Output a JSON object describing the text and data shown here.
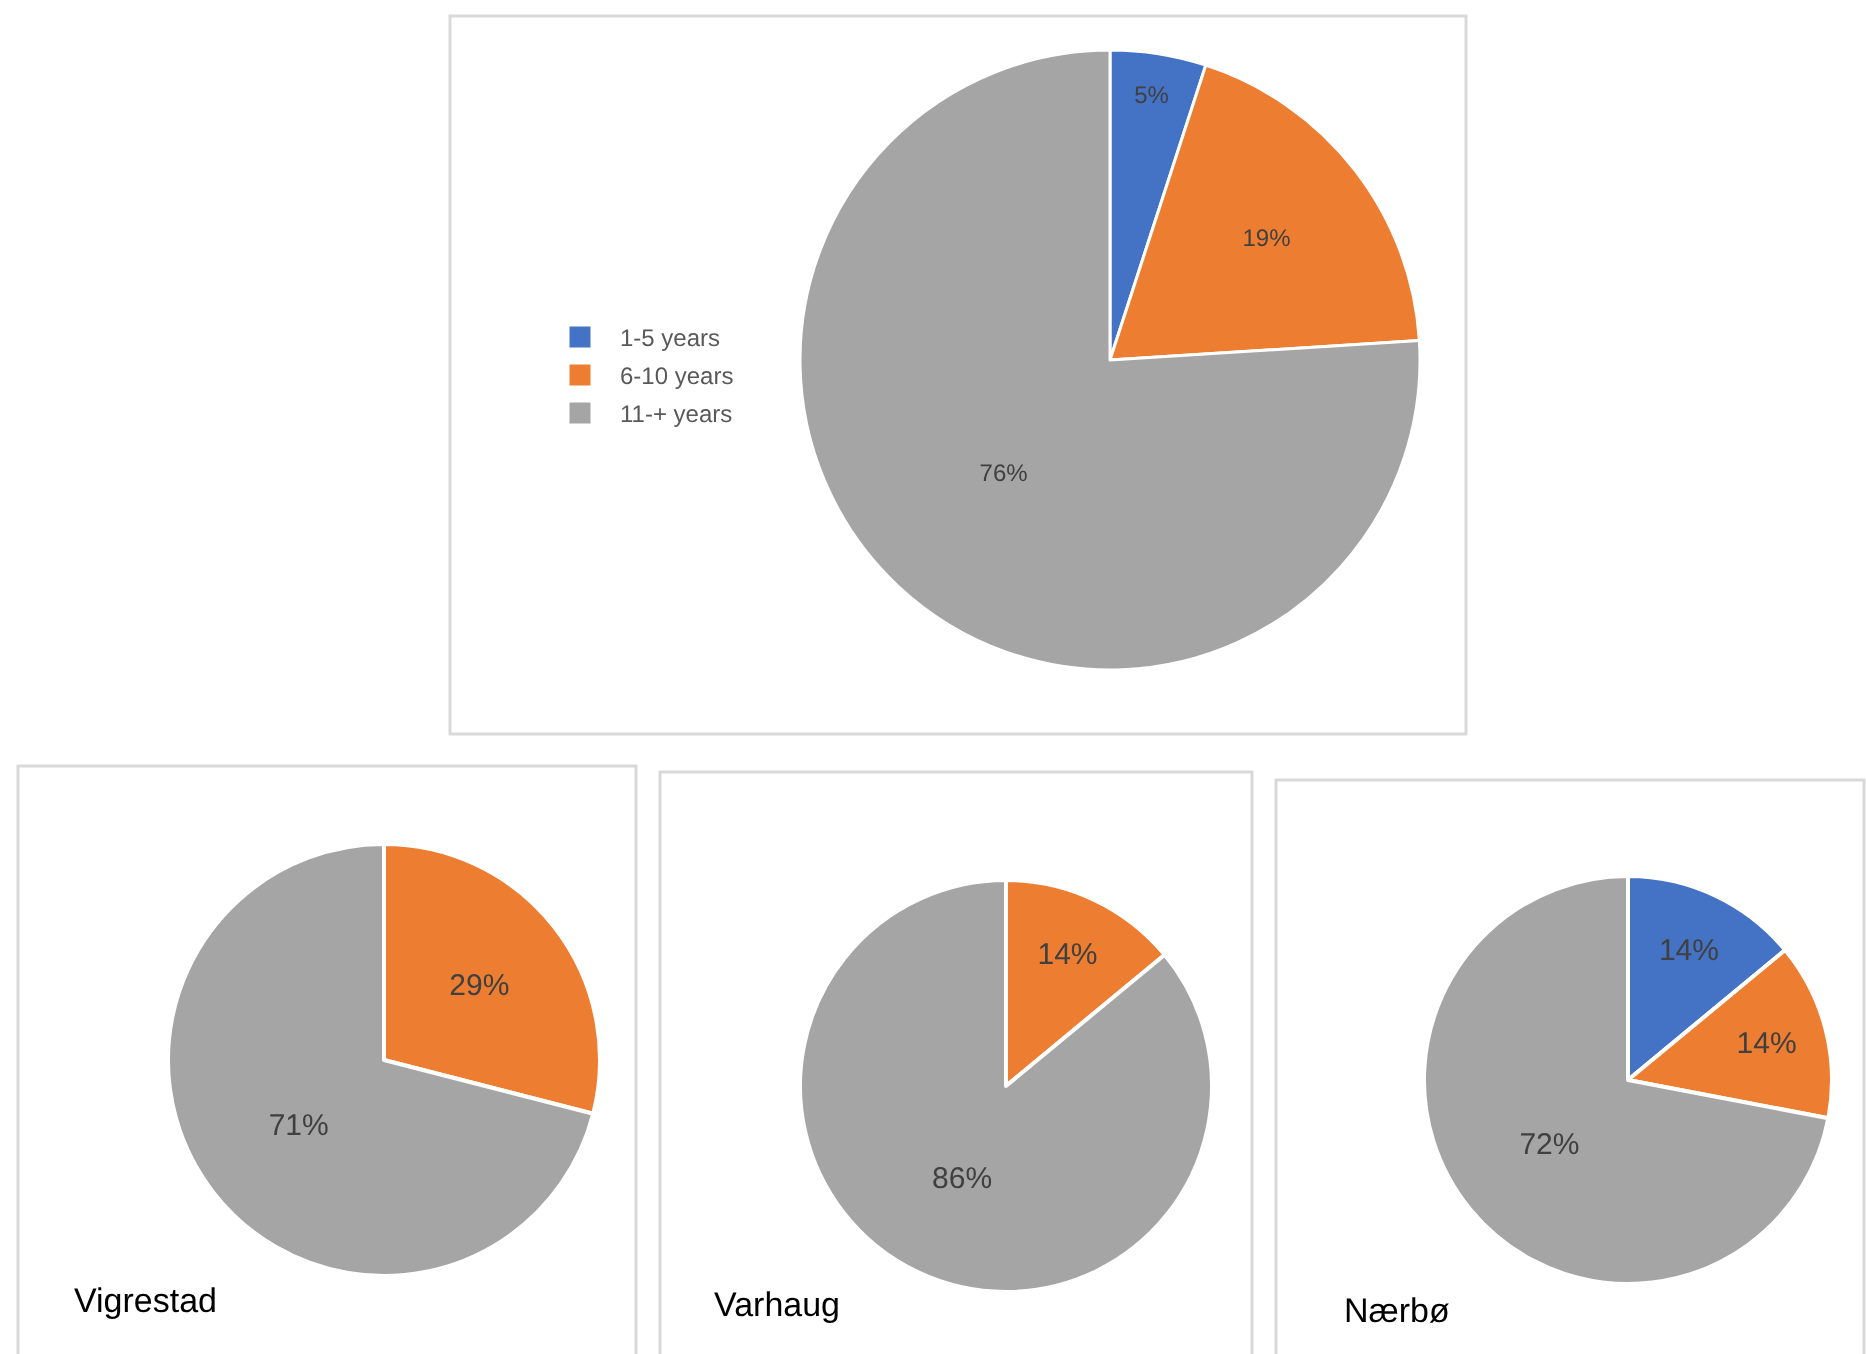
{
  "chart_data": [
    {
      "type": "pie",
      "categories": [
        "1-5 years",
        "6-10 years",
        "11-+ years"
      ],
      "values": [
        5,
        19,
        76
      ],
      "colors": [
        "#4472c4",
        "#ed7d31",
        "#a5a5a5"
      ],
      "value_labels": [
        "5%",
        "19%",
        "76%"
      ],
      "legend": "left"
    },
    {
      "type": "pie",
      "title": "Vigrestad",
      "categories": [
        null,
        null
      ],
      "values": [
        29,
        71
      ],
      "colors": [
        "#ed7d31",
        "#a5a5a5"
      ],
      "value_labels": [
        "29%",
        "71%"
      ]
    },
    {
      "type": "pie",
      "title": "Varhaug",
      "categories": [
        null,
        null
      ],
      "values": [
        14,
        86
      ],
      "colors": [
        "#ed7d31",
        "#a5a5a5"
      ],
      "value_labels": [
        "14%",
        "86%"
      ]
    },
    {
      "type": "pie",
      "title": "Nærbø",
      "categories": [
        null,
        null,
        null
      ],
      "values": [
        14,
        14,
        72
      ],
      "colors": [
        "#4472c4",
        "#ed7d31",
        "#a5a5a5"
      ],
      "value_labels": [
        "14%",
        "14%",
        "72%"
      ]
    }
  ]
}
